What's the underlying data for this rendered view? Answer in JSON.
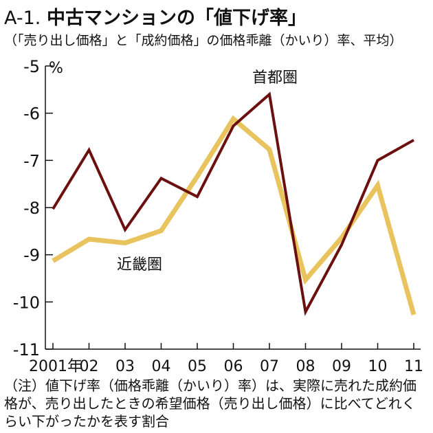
{
  "title": {
    "number": "A-1.",
    "main": "中古マンションの「値下げ率」"
  },
  "subtitle": "（「売り出し価格」と「成約価格」の価格乖離（かいり）率、平均）",
  "note": "（注）値下げ率（価格乖離（かいり）率）は、実際に売れた成約価格が、売り出したときの希望価格（売り出し価格）に比べてどれくらい下がったかを表す割合",
  "chart_data": {
    "type": "line",
    "y_unit": "%",
    "ylim": [
      -11,
      -5
    ],
    "yticks": [
      -5,
      -6,
      -7,
      -8,
      -9,
      -10,
      -11
    ],
    "ytick_labels": [
      "-5",
      "-6",
      "-7",
      "-8",
      "-9",
      "-10",
      "-11"
    ],
    "categories": [
      "2001年",
      "02",
      "03",
      "04",
      "05",
      "06",
      "07",
      "08",
      "09",
      "10",
      "11"
    ],
    "x_labels": [
      "2001年",
      "02",
      "03",
      "04",
      "05",
      "06",
      "07",
      "08",
      "09",
      "10",
      "11"
    ],
    "grid": false,
    "legend": "direct labels",
    "series": [
      {
        "name": "首都圏",
        "color": "#6b0f0f",
        "values": [
          -8.03,
          -6.78,
          -8.47,
          -7.38,
          -7.77,
          -6.27,
          -5.6,
          -10.21,
          -8.79,
          -7.0,
          -6.57
        ]
      },
      {
        "name": "近畿圏",
        "color": "#e8c35e",
        "values": [
          -9.13,
          -8.67,
          -8.75,
          -8.49,
          -7.34,
          -6.12,
          -6.77,
          -9.53,
          -8.64,
          -7.53,
          -10.27
        ]
      }
    ]
  }
}
